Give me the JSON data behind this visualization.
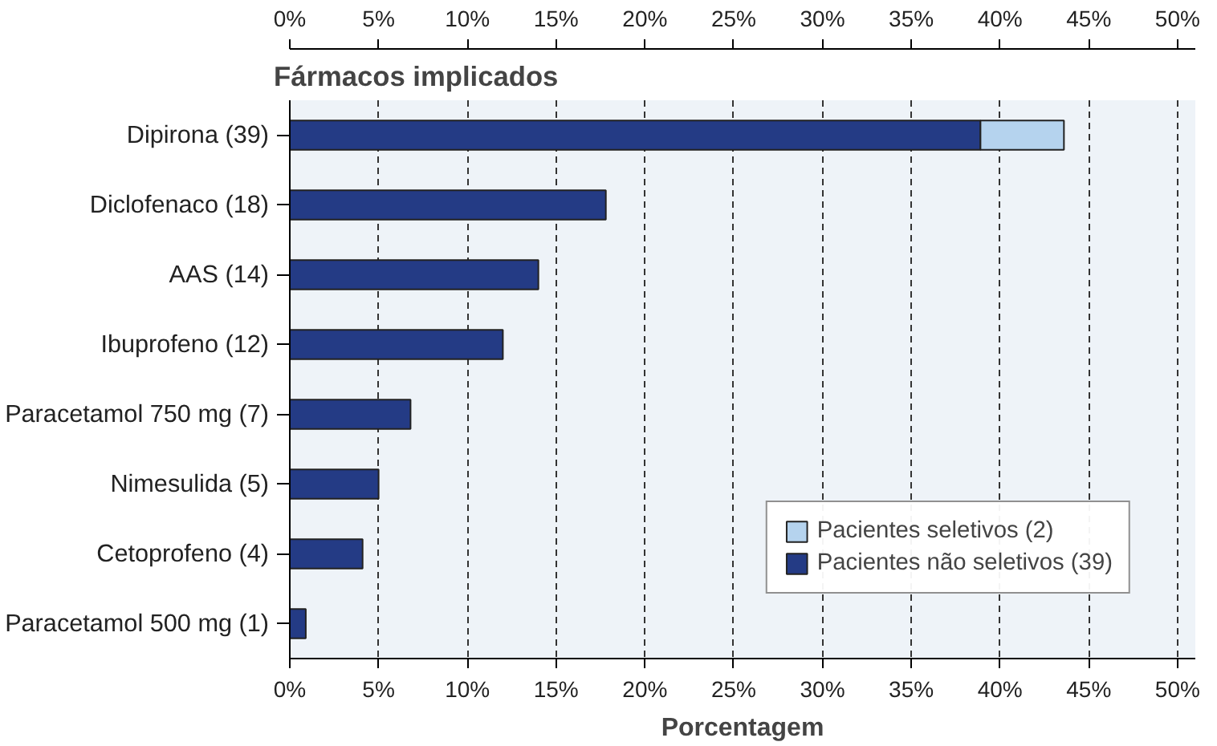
{
  "chart_data": {
    "type": "bar",
    "orientation": "horizontal",
    "stacked": true,
    "title": "Fármacos implicados",
    "xlabel": "Porcentagem",
    "categories": [
      "Dipirona (39)",
      "Diclofenaco (18)",
      "AAS (14)",
      "Ibuprofeno (12)",
      "Paracetamol 750 mg (7)",
      "Nimesulida (5)",
      "Cetoprofeno (4)",
      "Paracetamol 500 mg (1)"
    ],
    "series": [
      {
        "name": "Pacientes não seletivos (39)",
        "color": "#243b85",
        "values": [
          38.9,
          17.8,
          14.0,
          12.0,
          6.8,
          5.0,
          4.1,
          0.9
        ]
      },
      {
        "name": "Pacientes seletivos (2)",
        "color": "#b5d3ee",
        "values": [
          4.7,
          null,
          null,
          null,
          null,
          null,
          null,
          null
        ]
      }
    ],
    "xlim": [
      0,
      51
    ],
    "xticks": [
      {
        "value": 0,
        "label": "0%"
      },
      {
        "value": 5,
        "label": "5%"
      },
      {
        "value": 10,
        "label": "10%"
      },
      {
        "value": 15,
        "label": "15%"
      },
      {
        "value": 20,
        "label": "20%"
      },
      {
        "value": 25,
        "label": "25%"
      },
      {
        "value": 30,
        "label": "30%"
      },
      {
        "value": 35,
        "label": "35%"
      },
      {
        "value": 40,
        "label": "40%"
      },
      {
        "value": 45,
        "label": "45%"
      },
      {
        "value": 50,
        "label": "50%"
      }
    ],
    "x2lim": [
      0,
      51
    ],
    "x2ticks": [
      {
        "value": 0,
        "label": "0%"
      },
      {
        "value": 5,
        "label": "5%"
      },
      {
        "value": 10,
        "label": "10%"
      },
      {
        "value": 15,
        "label": "15%"
      },
      {
        "value": 20,
        "label": "20%"
      },
      {
        "value": 25,
        "label": "25%"
      },
      {
        "value": 30,
        "label": "30%"
      },
      {
        "value": 35,
        "label": "35%"
      },
      {
        "value": 40,
        "label": "40%"
      },
      {
        "value": 45,
        "label": "45%"
      },
      {
        "value": 50,
        "label": "50%"
      }
    ],
    "grid": "x",
    "legend": "bottom right"
  }
}
